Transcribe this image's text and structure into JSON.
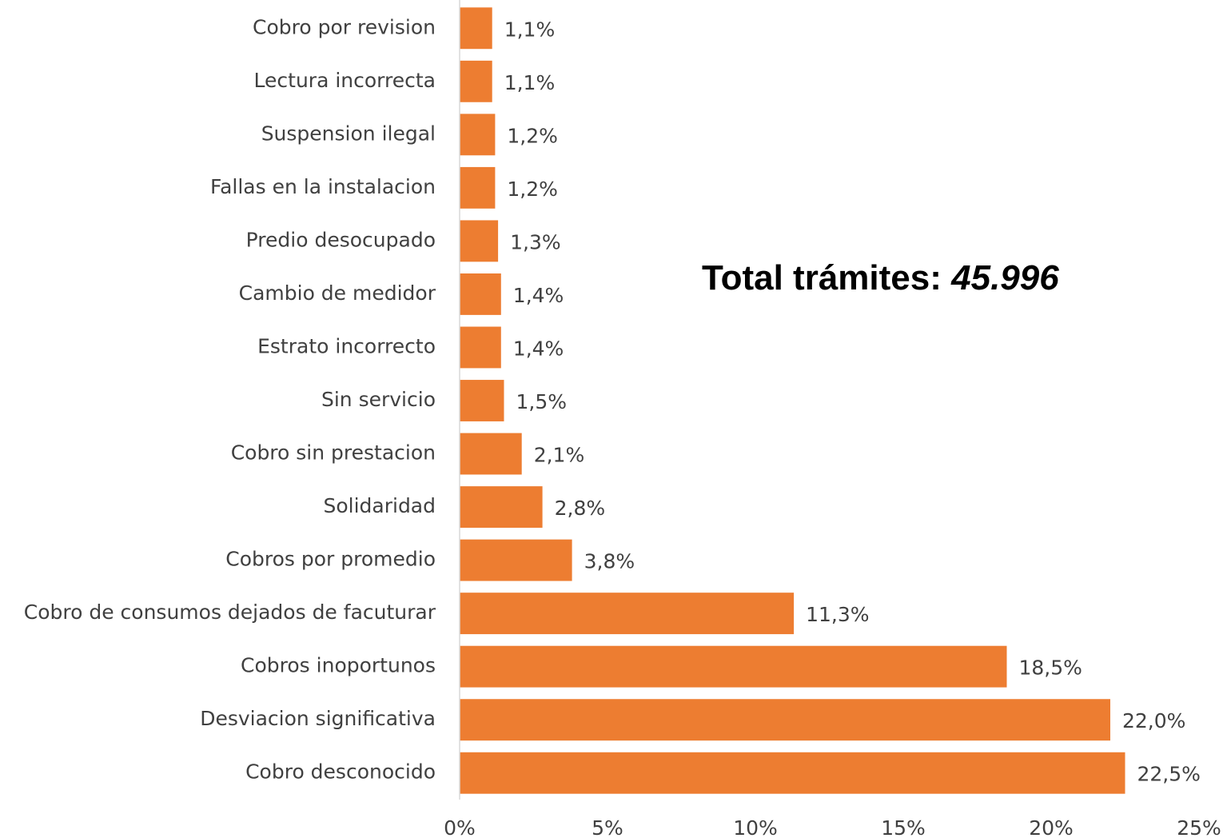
{
  "chart_data": {
    "type": "bar",
    "orientation": "horizontal",
    "categories": [
      "Cobro por revision",
      "Lectura incorrecta",
      "Suspension ilegal",
      "Fallas en la instalacion",
      "Predio desocupado",
      "Cambio de medidor",
      "Estrato incorrecto",
      "Sin servicio",
      "Cobro sin prestacion",
      "Solidaridad",
      "Cobros por promedio",
      "Cobro de consumos dejados de facuturar",
      "Cobros inoportunos",
      "Desviacion significativa",
      "Cobro desconocido"
    ],
    "values": [
      1.1,
      1.1,
      1.2,
      1.2,
      1.3,
      1.4,
      1.4,
      1.5,
      2.1,
      2.8,
      3.8,
      11.3,
      18.5,
      22.0,
      22.5
    ],
    "value_labels": [
      "1,1%",
      "1,1%",
      "1,2%",
      "1,2%",
      "1,3%",
      "1,4%",
      "1,4%",
      "1,5%",
      "2,1%",
      "2,8%",
      "3,8%",
      "11,3%",
      "18,5%",
      "22,0%",
      "22,5%"
    ],
    "color": "#ed7d31",
    "xlim": [
      0,
      25
    ],
    "xticks": [
      {
        "value": 0,
        "label": "0%"
      },
      {
        "value": 5,
        "label": "5%"
      },
      {
        "value": 10,
        "label": "10%"
      },
      {
        "value": 15,
        "label": "15%"
      },
      {
        "value": 20,
        "label": "20%"
      },
      {
        "value": 25,
        "label": "25%"
      }
    ],
    "grid": false,
    "annotation": {
      "label": "Total trámites:",
      "value": "45.996"
    }
  }
}
